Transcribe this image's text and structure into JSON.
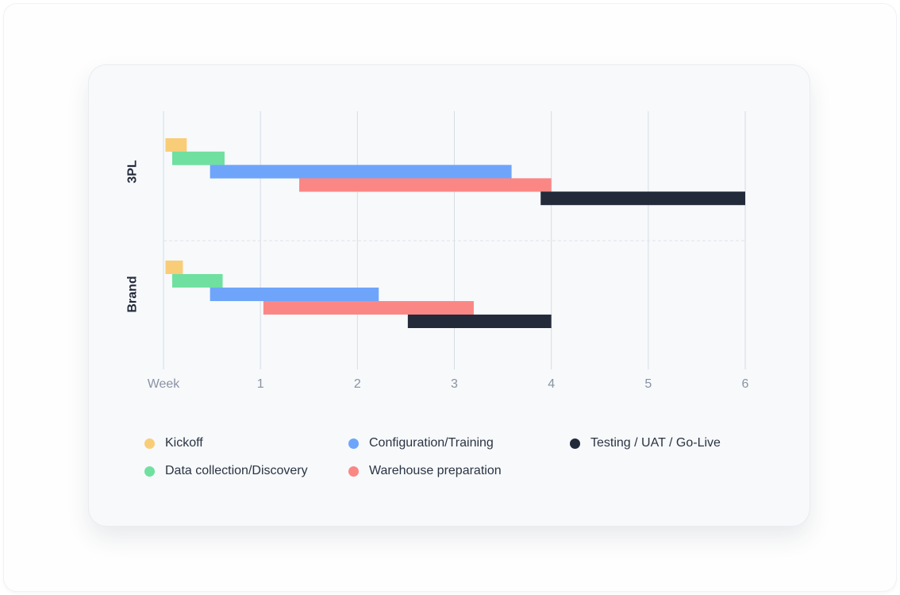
{
  "chart_data": {
    "type": "gantt",
    "xlabel": "Week",
    "x_ticks": [
      {
        "value": 0,
        "label": "Week"
      },
      {
        "value": 1,
        "label": "1"
      },
      {
        "value": 2,
        "label": "2"
      },
      {
        "value": 3,
        "label": "3"
      },
      {
        "value": 4,
        "label": "4"
      },
      {
        "value": 5,
        "label": "5"
      },
      {
        "value": 6,
        "label": "6"
      }
    ],
    "xlim": [
      0,
      6
    ],
    "grid": true,
    "legend_position": "bottom",
    "phases": [
      {
        "name": "Kickoff",
        "color": "#f9cd78"
      },
      {
        "name": "Data collection/Discovery",
        "color": "#70e0a0"
      },
      {
        "name": "Configuration/Training",
        "color": "#6ea5fb"
      },
      {
        "name": "Warehouse preparation",
        "color": "#fb8785"
      },
      {
        "name": "Testing / UAT / Go-Live",
        "color": "#232b3b"
      }
    ],
    "groups": [
      {
        "label": "3PL",
        "tasks": [
          {
            "phase": "Kickoff",
            "start": 0.02,
            "end": 0.24
          },
          {
            "phase": "Data collection/Discovery",
            "start": 0.09,
            "end": 0.63
          },
          {
            "phase": "Configuration/Training",
            "start": 0.48,
            "end": 3.59
          },
          {
            "phase": "Warehouse preparation",
            "start": 1.4,
            "end": 4.0
          },
          {
            "phase": "Testing / UAT / Go-Live",
            "start": 3.89,
            "end": 6.0
          }
        ]
      },
      {
        "label": "Brand",
        "tasks": [
          {
            "phase": "Kickoff",
            "start": 0.02,
            "end": 0.2
          },
          {
            "phase": "Data collection/Discovery",
            "start": 0.09,
            "end": 0.61
          },
          {
            "phase": "Configuration/Training",
            "start": 0.48,
            "end": 2.22
          },
          {
            "phase": "Warehouse preparation",
            "start": 1.03,
            "end": 3.2
          },
          {
            "phase": "Testing / UAT / Go-Live",
            "start": 2.52,
            "end": 4.0
          }
        ]
      }
    ]
  }
}
